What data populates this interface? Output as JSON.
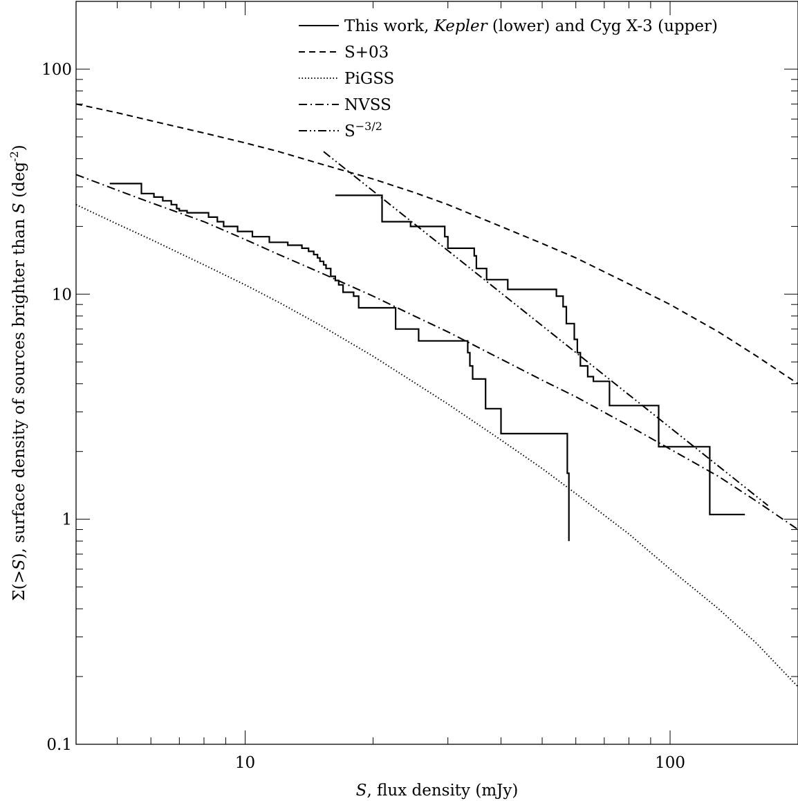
{
  "chart_data": {
    "type": "line",
    "x_scale": "log",
    "y_scale": "log",
    "xlim": [
      4,
      200
    ],
    "ylim": [
      0.1,
      200
    ],
    "grid": false,
    "legend_position": "top-right",
    "xlabel_parts": [
      {
        "text": "S",
        "italic": true
      },
      {
        "text": ", flux density (mJy)",
        "italic": false
      }
    ],
    "ylabel_parts": [
      {
        "text": "Σ(>",
        "italic": false
      },
      {
        "text": "S",
        "italic": true
      },
      {
        "text": "), surface density of sources brighter than ",
        "italic": false
      },
      {
        "text": "S",
        "italic": true
      },
      {
        "text": " (deg",
        "italic": false
      },
      {
        "text": "-2",
        "italic": false,
        "sup": true
      },
      {
        "text": ")",
        "italic": false
      }
    ],
    "x_ticks": [
      {
        "value": 10,
        "label": "10"
      },
      {
        "value": 100,
        "label": "100"
      }
    ],
    "y_ticks": [
      {
        "value": 0.1,
        "label": "0.1"
      },
      {
        "value": 1,
        "label": "1"
      },
      {
        "value": 10,
        "label": "10"
      },
      {
        "value": 100,
        "label": "100"
      }
    ],
    "series": [
      {
        "name": "This work, Kepler (lower)",
        "legend_parts": [
          {
            "text": "This work, ",
            "italic": false
          },
          {
            "text": "Kepler",
            "italic": true
          },
          {
            "text": " (lower) and Cyg X-3 (upper)",
            "italic": false
          }
        ],
        "style": "solid",
        "step": true,
        "x": [
          4.8,
          5.6,
          5.7,
          6.1,
          6.4,
          6.7,
          6.9,
          7.0,
          7.3,
          8.2,
          8.6,
          8.9,
          9.6,
          10.4,
          11.4,
          12.6,
          13.6,
          14.1,
          14.5,
          14.8,
          15.0,
          15.3,
          15.5,
          15.9,
          16.3,
          16.6,
          17.0,
          18.0,
          18.5,
          22.4,
          22.6,
          25.6,
          33.1,
          33.4,
          33.8,
          34.3,
          36.8,
          40.0,
          57.0,
          57.3,
          57.8
        ],
        "y": [
          31.0,
          31.0,
          28.0,
          27.0,
          26.0,
          25.0,
          24.0,
          23.5,
          23.0,
          22.0,
          21.0,
          20.0,
          19.0,
          18.0,
          17.0,
          16.5,
          16.0,
          15.5,
          15.0,
          14.5,
          14.0,
          13.5,
          13.0,
          12.0,
          11.5,
          11.0,
          10.2,
          9.8,
          8.7,
          8.7,
          7.0,
          6.2,
          6.2,
          5.5,
          4.8,
          4.2,
          3.1,
          2.4,
          2.4,
          1.6,
          0.8
        ]
      },
      {
        "name": "Cyg X-3 (upper)",
        "style": "solid",
        "step": true,
        "legend": false,
        "x": [
          16.3,
          18.6,
          21.0,
          24.5,
          29.5,
          30.0,
          34.6,
          35.0,
          37.0,
          41.5,
          53.5,
          54.0,
          56.0,
          57.0,
          59.5,
          60.5,
          61.5,
          64.0,
          66.0,
          72.0,
          94.0,
          124.0,
          150.0
        ],
        "y": [
          27.5,
          27.5,
          21.0,
          20.0,
          18.0,
          16.0,
          14.8,
          13.0,
          11.6,
          10.5,
          10.5,
          9.8,
          8.8,
          7.4,
          6.3,
          5.5,
          4.8,
          4.3,
          4.1,
          3.2,
          2.1,
          1.05,
          1.05
        ]
      },
      {
        "name": "S+03",
        "style": "dashed",
        "x": [
          4,
          5,
          6,
          8,
          10,
          12,
          15,
          20,
          25,
          30,
          40,
          50,
          60,
          80,
          100,
          130,
          160,
          200
        ],
        "y": [
          70,
          64,
          59,
          52,
          47,
          43,
          38,
          32.5,
          28.3,
          25,
          20,
          16.8,
          14.5,
          11.1,
          9,
          6.8,
          5.3,
          4.0
        ]
      },
      {
        "name": "PiGSS",
        "style": "dotted",
        "x": [
          4,
          5,
          6,
          8,
          10,
          12,
          15,
          20,
          25,
          30,
          40,
          50,
          60,
          80,
          100,
          130,
          160,
          200
        ],
        "y": [
          25,
          20.5,
          17.5,
          13.5,
          11.0,
          9.2,
          7.3,
          5.3,
          4.05,
          3.25,
          2.25,
          1.68,
          1.3,
          0.86,
          0.6,
          0.4,
          0.28,
          0.18
        ]
      },
      {
        "name": "NVSS",
        "style": "dashdot",
        "x": [
          4,
          5,
          6,
          8,
          10,
          12,
          15,
          20,
          25,
          30,
          40,
          50,
          60,
          80,
          100,
          130,
          160,
          200
        ],
        "y": [
          34,
          29,
          25.5,
          21,
          17.5,
          15,
          12.5,
          9.8,
          8,
          6.8,
          5.15,
          4.15,
          3.5,
          2.6,
          2.05,
          1.55,
          1.2,
          0.9
        ]
      },
      {
        "name": "S^{-3/2}",
        "legend_parts": [
          {
            "text": "S",
            "italic": false
          },
          {
            "text": "−3/2",
            "italic": false,
            "sup": true
          }
        ],
        "style": "dashdotdot",
        "x": [
          15.3,
          170.0
        ],
        "y": [
          43.0,
          1.15
        ]
      }
    ]
  }
}
